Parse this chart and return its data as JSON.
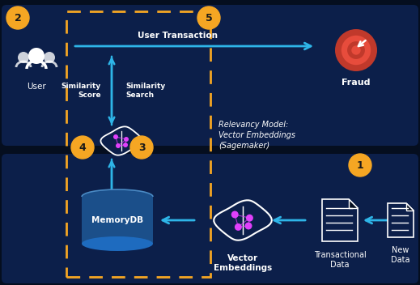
{
  "bg_color": "#050e1f",
  "top_panel_color": "#0c1f4a",
  "bottom_panel_color": "#0c1f4a",
  "dashed_color": "#f5a623",
  "arrow_color": "#2eb5e8",
  "step_color": "#f5a623",
  "step_text": "#1a1a1a",
  "white": "#ffffff",
  "brain_outline": "#ffffff",
  "brain_bg": "#0c1f4a",
  "pink": "#e040fb",
  "fraud_red1": "#c0392b",
  "fraud_red2": "#e74c3c",
  "mem_dark": "#1b4f8a",
  "mem_light": "#1e6bbf",
  "doc_bg": "#0c1f4a",
  "labels": {
    "user": "User",
    "fraud": "Fraud",
    "sim_score": "Similarity\nScore",
    "sim_search": "Similarity\nSearch",
    "relevancy": "Relevancy Model:\nVector Embeddings\n(Sagemaker)",
    "memorydb": "MemoryDB",
    "vec_emb": "Vector\nEmbeddings",
    "trans_data": "Transactional\nData",
    "new_data": "New\nData",
    "user_trans": "User Transaction"
  }
}
